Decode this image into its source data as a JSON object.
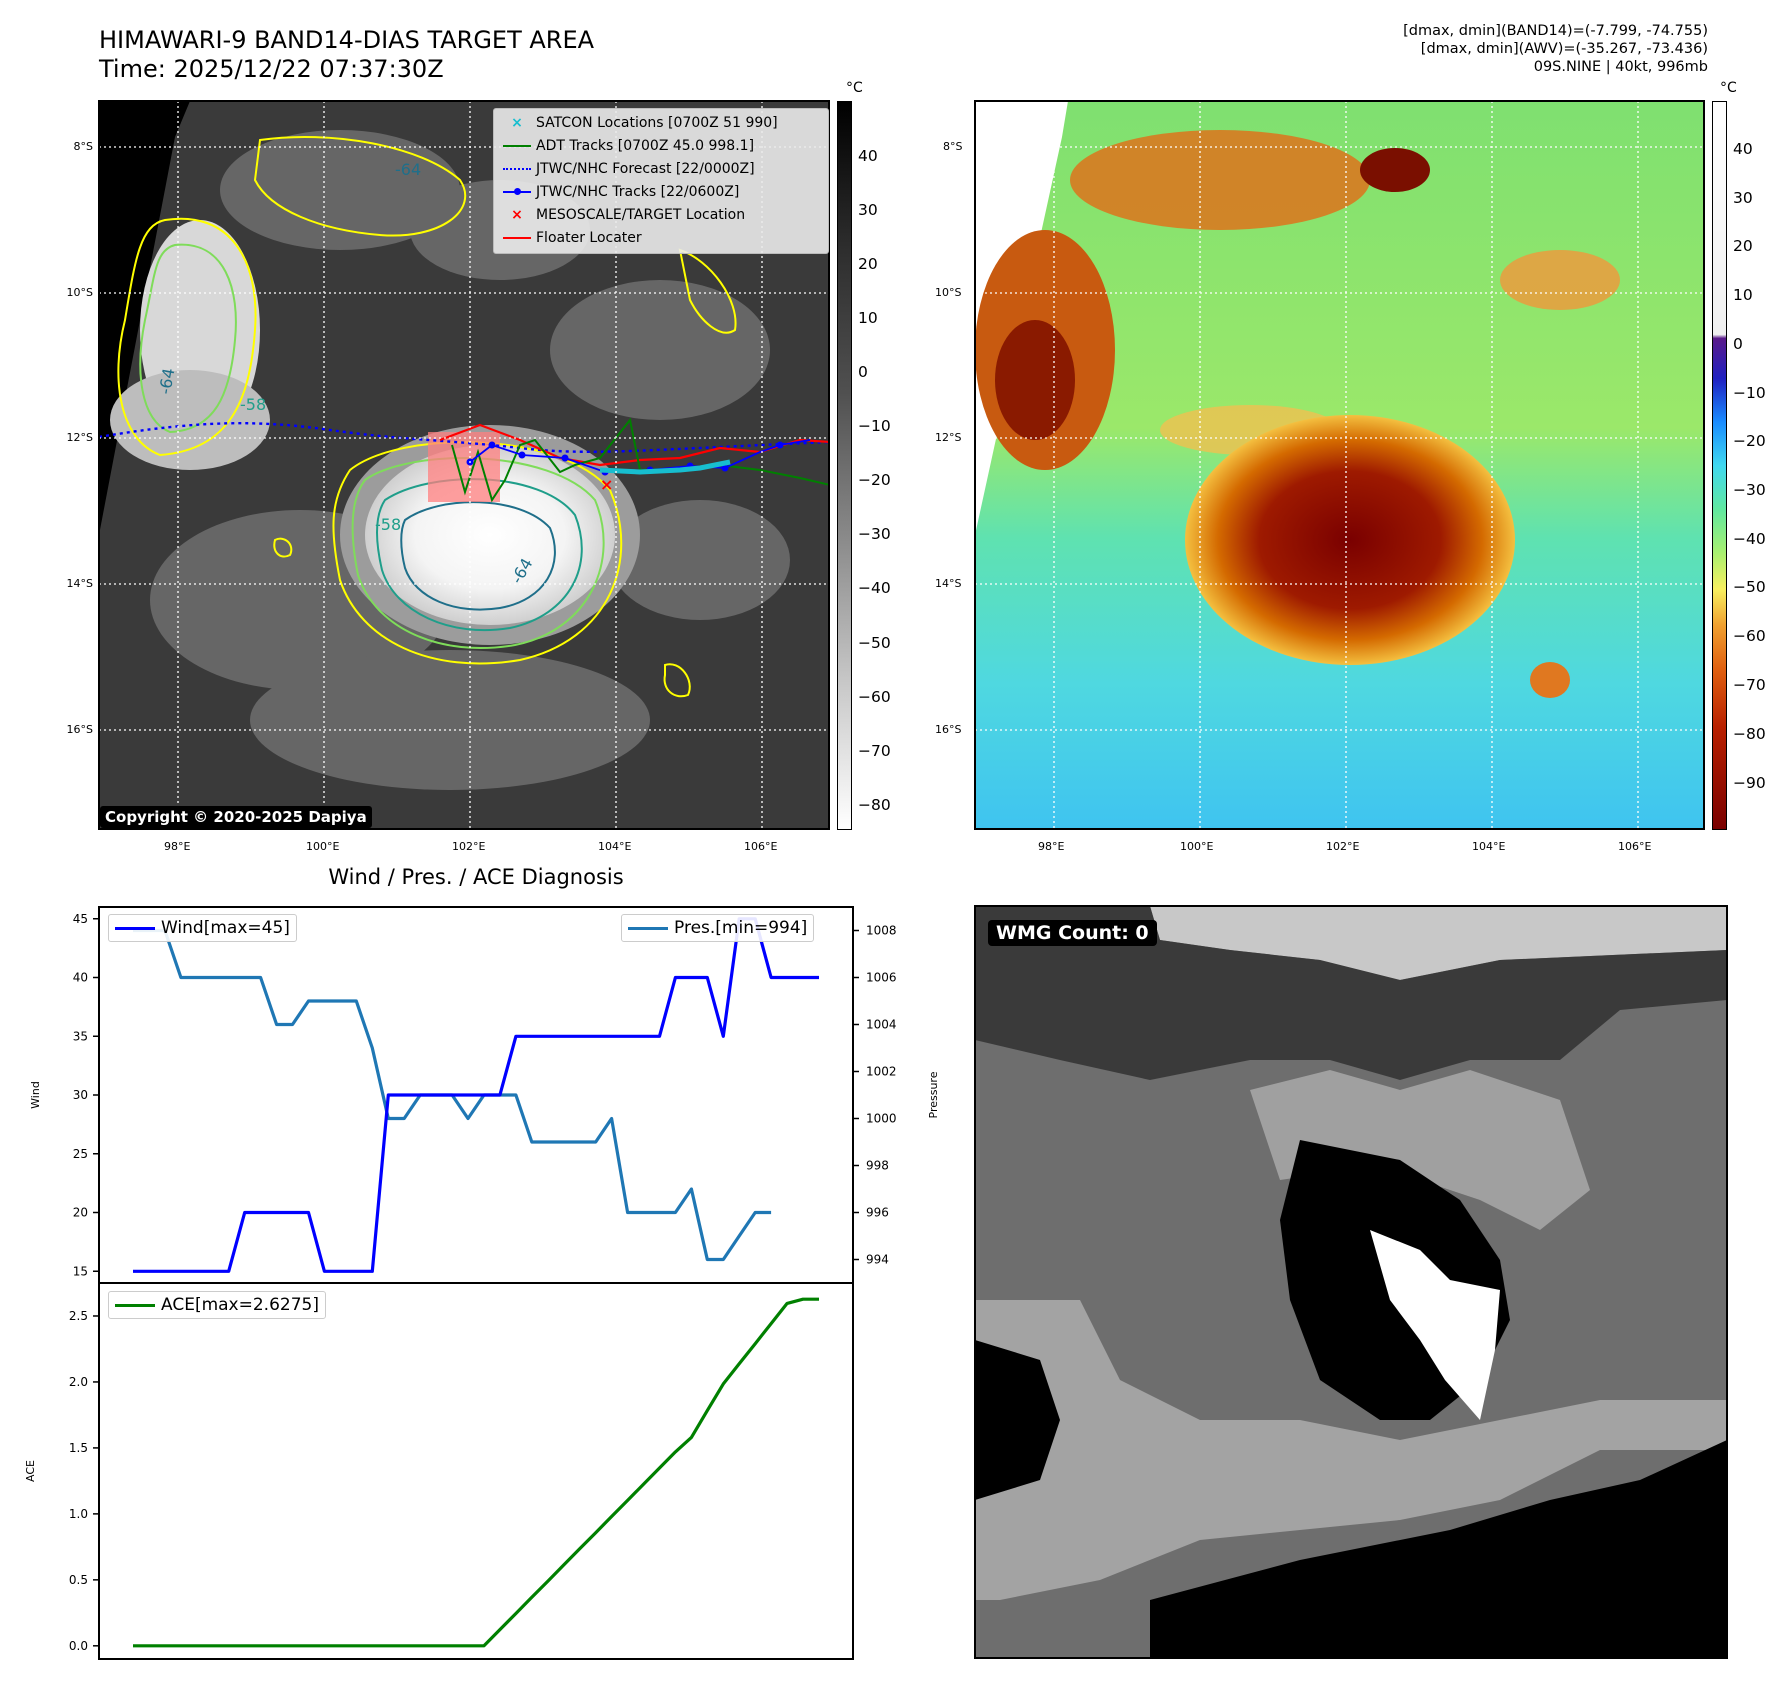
{
  "header": {
    "title_line1": "HIMAWARI-9 BAND14-DIAS TARGET AREA",
    "title_line2": "Time: 2025/12/22 07:37:30Z",
    "info_line1": "[dmax, dmin](BAND14)=(-7.799, -74.755)",
    "info_line2": "[dmax, dmin](AWV)=(-35.267, -73.436)",
    "info_line3": "09S.NINE | 40kt, 996mb"
  },
  "map_axes": {
    "lat_labels": [
      "8°S",
      "10°S",
      "12°S",
      "14°S",
      "16°S"
    ],
    "lon_labels": [
      "98°E",
      "100°E",
      "102°E",
      "104°E",
      "106°E"
    ]
  },
  "left_map": {
    "legend": [
      "SATCON Locations [0700Z 51 990]",
      "ADT Tracks [0700Z 45.0 998.1]",
      "JTWC/NHC Forecast [22/0000Z]",
      "JTWC/NHC Tracks [22/0600Z]",
      "MESOSCALE/TARGET Location",
      "Floater Locater"
    ],
    "copyright": "Copyright © 2020-2025 Dapiya",
    "contour_labels": [
      "-64",
      "-64",
      "-64",
      "-58",
      "-58"
    ]
  },
  "gray_colorbar": {
    "unit": "°C",
    "ticks": [
      "40",
      "30",
      "20",
      "10",
      "0",
      "−10",
      "−20",
      "−30",
      "−40",
      "−50",
      "−60",
      "−70",
      "−80"
    ]
  },
  "color_colorbar": {
    "unit": "°C",
    "ticks": [
      "40",
      "30",
      "20",
      "10",
      "0",
      "−10",
      "−20",
      "−30",
      "−40",
      "−50",
      "−60",
      "−70",
      "−80",
      "−90"
    ]
  },
  "diagnosis": {
    "title": "Wind / Pres. / ACE Diagnosis",
    "wind_legend": "Wind[max=45]",
    "pres_legend": "Pres.[min=994]",
    "ace_legend": "ACE[max=2.6275]",
    "ylabel_wind": "Wind",
    "ylabel_pres": "Pressure",
    "ylabel_ace": "ACE"
  },
  "wmg": {
    "label": "WMG Count: 0"
  },
  "colors": {
    "wind": "#0000ff",
    "pressure": "#1f77b4",
    "ace": "#008000",
    "satcon": "#17becf",
    "adt": "#008000",
    "forecast": "#0000ff",
    "track": "#0000ff",
    "target": "#ff0000",
    "floater": "#ff0000"
  },
  "chart_data": [
    {
      "type": "line",
      "title": "Wind / Pres. / ACE Diagnosis",
      "x": [
        0,
        1,
        2,
        3,
        4,
        5,
        6,
        7,
        8,
        9,
        10,
        11,
        12,
        13,
        14,
        15,
        16,
        17,
        18,
        19,
        20,
        21,
        22,
        23,
        24,
        25,
        26,
        27,
        28,
        29,
        30,
        31,
        32,
        33,
        34,
        35,
        36,
        37,
        38,
        39,
        40,
        41,
        42,
        43
      ],
      "series": [
        {
          "name": "Wind[max=45]",
          "axis": "left",
          "values": [
            15,
            15,
            15,
            15,
            15,
            15,
            15,
            20,
            20,
            20,
            20,
            20,
            15,
            15,
            15,
            15,
            30,
            30,
            30,
            30,
            30,
            30,
            30,
            30,
            35,
            35,
            35,
            35,
            35,
            35,
            35,
            35,
            35,
            35,
            40,
            40,
            40,
            35,
            45,
            45,
            40,
            40,
            40,
            40
          ]
        },
        {
          "name": "Pres.[min=994]",
          "axis": "right",
          "values": [
            1008,
            1008,
            1008,
            1006,
            1006,
            1006,
            1006,
            1006,
            1006,
            1004,
            1004,
            1005,
            1005,
            1005,
            1005,
            1003,
            1000,
            1000,
            1001,
            1001,
            1001,
            1000,
            1001,
            1001,
            1001,
            999,
            999,
            999,
            999,
            999,
            1000,
            996,
            996,
            996,
            996,
            997,
            994,
            994,
            995,
            996,
            996,
            null,
            null,
            null
          ]
        }
      ],
      "xlim": [
        0,
        43
      ],
      "ylim_left": [
        14,
        46
      ],
      "ylim_right": [
        993,
        1009
      ],
      "yticks_left": [
        15,
        20,
        25,
        30,
        35,
        40,
        45
      ],
      "yticks_right": [
        994,
        996,
        998,
        1000,
        1002,
        1004,
        1006,
        1008
      ],
      "ylabel": "Wind",
      "ylabel_right": "Pressure"
    },
    {
      "type": "line",
      "title": "",
      "x": [
        0,
        1,
        2,
        3,
        4,
        5,
        6,
        7,
        8,
        9,
        10,
        11,
        12,
        13,
        14,
        15,
        16,
        17,
        18,
        19,
        20,
        21,
        22,
        23,
        24,
        25,
        26,
        27,
        28,
        29,
        30,
        31,
        32,
        33,
        34,
        35,
        36,
        37,
        38,
        39,
        40,
        41,
        42,
        43
      ],
      "series": [
        {
          "name": "ACE[max=2.6275]",
          "values": [
            0,
            0,
            0,
            0,
            0,
            0,
            0,
            0,
            0,
            0,
            0,
            0,
            0,
            0,
            0,
            0,
            0,
            0,
            0,
            0,
            0,
            0,
            0,
            0.1225,
            0.245,
            0.3675,
            0.49,
            0.6125,
            0.735,
            0.8575,
            0.98,
            1.1025,
            1.225,
            1.3475,
            1.47,
            1.58,
            1.7825,
            1.985,
            2.1375,
            2.29,
            2.4425,
            2.595,
            2.6275,
            2.6275
          ]
        }
      ],
      "xlim": [
        0,
        43
      ],
      "ylim": [
        -0.1,
        2.75
      ],
      "yticks": [
        0.0,
        0.5,
        1.0,
        1.5,
        2.0,
        2.5
      ],
      "ytick_labels": [
        "0.0",
        "0.5",
        "1.0",
        "1.5",
        "2.0",
        "2.5"
      ],
      "ylabel": "ACE"
    }
  ]
}
